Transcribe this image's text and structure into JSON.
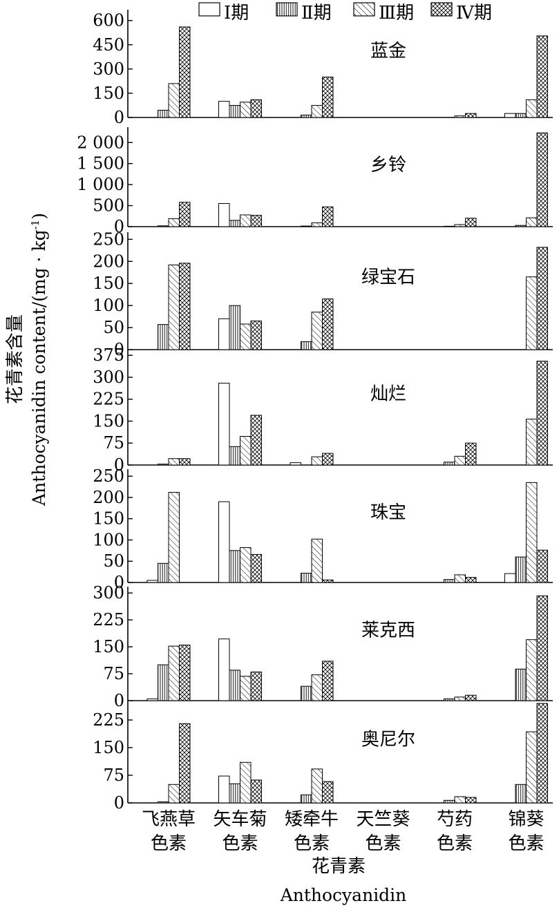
{
  "chart_data": {
    "type": "bar",
    "layout": "stacked-panels",
    "legend": {
      "placement": "top",
      "entries": [
        {
          "label": "Ⅰ期",
          "pattern": "blank"
        },
        {
          "label": "Ⅱ期",
          "pattern": "vertical-lines"
        },
        {
          "label": "Ⅲ期",
          "pattern": "diagonal-lines"
        },
        {
          "label": "Ⅳ期",
          "pattern": "crosshatch"
        }
      ]
    },
    "categories": [
      {
        "line1": "飞燕草",
        "line2": "色素"
      },
      {
        "line1": "矢车菊",
        "line2": "色素"
      },
      {
        "line1": "矮牵牛",
        "line2": "色素"
      },
      {
        "line1": "天竺葵",
        "line2": "色素"
      },
      {
        "line1": "芍药",
        "line2": "色素"
      },
      {
        "line1": "锦葵",
        "line2": "色素"
      }
    ],
    "xlabel_zh": "花青素",
    "xlabel_en": "Anthocyanidin",
    "ylabel_zh": "花青素含量",
    "ylabel_en": "Anthocyanidin content/(mg · kg",
    "ylabel_en_sup": "-1",
    "ylabel_en_close": ")",
    "grid": false,
    "colors": {
      "axis": "#000000",
      "fill": "#ffffff",
      "pattern": "#000000"
    },
    "panels": [
      {
        "title": "蓝金",
        "ylim": [
          0,
          650
        ],
        "ticks": [
          {
            "v": 0,
            "t": "0"
          },
          {
            "v": 150,
            "t": "150"
          },
          {
            "v": 300,
            "t": "300"
          },
          {
            "v": 450,
            "t": "450"
          },
          {
            "v": 600,
            "t": "600"
          }
        ],
        "series": [
          [
            0,
            100,
            0,
            0,
            0,
            25
          ],
          [
            45,
            75,
            15,
            0,
            0,
            25
          ],
          [
            210,
            95,
            75,
            0,
            10,
            110
          ],
          [
            560,
            110,
            250,
            0,
            25,
            505
          ]
        ]
      },
      {
        "title": "乡铃",
        "ylim": [
          0,
          2300
        ],
        "ticks": [
          {
            "v": 0,
            "t": "0"
          },
          {
            "v": 500,
            "t": "500"
          },
          {
            "v": 1000,
            "t": "1 000"
          },
          {
            "v": 1500,
            "t": "1 500"
          },
          {
            "v": 2000,
            "t": "2 000"
          }
        ],
        "series": [
          [
            0,
            550,
            0,
            0,
            0,
            0
          ],
          [
            20,
            150,
            15,
            0,
            10,
            30
          ],
          [
            190,
            280,
            90,
            0,
            50,
            210
          ],
          [
            580,
            270,
            470,
            0,
            200,
            2230
          ]
        ]
      },
      {
        "title": "绿宝石",
        "ylim": [
          0,
          260
        ],
        "ticks": [
          {
            "v": 0,
            "t": "0"
          },
          {
            "v": 50,
            "t": "50"
          },
          {
            "v": 100,
            "t": "100"
          },
          {
            "v": 150,
            "t": "150"
          },
          {
            "v": 200,
            "t": "200"
          },
          {
            "v": 250,
            "t": "250"
          }
        ],
        "series": [
          [
            0,
            70,
            0,
            0,
            0,
            0
          ],
          [
            57,
            100,
            18,
            0,
            0,
            0
          ],
          [
            192,
            58,
            85,
            0,
            0,
            165
          ],
          [
            196,
            65,
            115,
            0,
            0,
            232
          ]
        ]
      },
      {
        "title": "灿烂",
        "ylim": [
          0,
          385
        ],
        "ticks": [
          {
            "v": 0,
            "t": "0"
          },
          {
            "v": 75,
            "t": "75"
          },
          {
            "v": 150,
            "t": "150"
          },
          {
            "v": 225,
            "t": "225"
          },
          {
            "v": 300,
            "t": "300"
          },
          {
            "v": 375,
            "t": "375"
          }
        ],
        "series": [
          [
            0,
            280,
            8,
            0,
            0,
            0
          ],
          [
            3,
            63,
            0,
            0,
            10,
            0
          ],
          [
            22,
            98,
            28,
            0,
            30,
            157
          ],
          [
            22,
            170,
            40,
            0,
            75,
            355
          ]
        ]
      },
      {
        "title": "珠宝",
        "ylim": [
          0,
          260
        ],
        "ticks": [
          {
            "v": 0,
            "t": "0"
          },
          {
            "v": 50,
            "t": "50"
          },
          {
            "v": 100,
            "t": "100"
          },
          {
            "v": 150,
            "t": "150"
          },
          {
            "v": 200,
            "t": "200"
          },
          {
            "v": 250,
            "t": "250"
          }
        ],
        "series": [
          [
            5,
            190,
            0,
            0,
            0,
            21
          ],
          [
            45,
            75,
            22,
            0,
            7,
            60
          ],
          [
            212,
            82,
            102,
            0,
            18,
            235
          ],
          [
            0,
            66,
            6,
            0,
            12,
            76
          ]
        ]
      },
      {
        "title": "莱克西",
        "ylim": [
          0,
          310
        ],
        "ticks": [
          {
            "v": 0,
            "t": "0"
          },
          {
            "v": 75,
            "t": "75"
          },
          {
            "v": 150,
            "t": "150"
          },
          {
            "v": 225,
            "t": "225"
          },
          {
            "v": 300,
            "t": "300"
          }
        ],
        "series": [
          [
            5,
            172,
            0,
            0,
            0,
            0
          ],
          [
            100,
            85,
            40,
            0,
            5,
            88
          ],
          [
            152,
            68,
            72,
            0,
            10,
            170
          ],
          [
            155,
            80,
            110,
            0,
            15,
            292
          ]
        ]
      },
      {
        "title": "奥尼尔",
        "ylim": [
          0,
          270
        ],
        "ticks": [
          {
            "v": 0,
            "t": "0"
          },
          {
            "v": 75,
            "t": "75"
          },
          {
            "v": 150,
            "t": "150"
          },
          {
            "v": 225,
            "t": "225"
          }
        ],
        "series": [
          [
            0,
            73,
            0,
            0,
            0,
            0
          ],
          [
            3,
            52,
            22,
            0,
            7,
            50
          ],
          [
            50,
            110,
            92,
            0,
            17,
            193
          ],
          [
            215,
            62,
            58,
            0,
            15,
            270
          ]
        ]
      }
    ]
  }
}
